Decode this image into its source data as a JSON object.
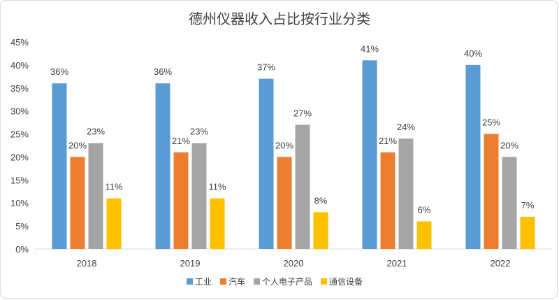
{
  "chart_data": {
    "type": "bar",
    "title": "德州仪器收入占比按行业分类",
    "categories": [
      "2018",
      "2019",
      "2020",
      "2021",
      "2022"
    ],
    "series": [
      {
        "name": "工业",
        "color": "#5B9BD5",
        "values": [
          36,
          36,
          37,
          41,
          40
        ]
      },
      {
        "name": "汽车",
        "color": "#ED7D31",
        "values": [
          20,
          21,
          20,
          21,
          25
        ]
      },
      {
        "name": "个人电子产品",
        "color": "#A5A5A5",
        "values": [
          23,
          23,
          27,
          24,
          20
        ]
      },
      {
        "name": "通信设备",
        "color": "#FFC000",
        "values": [
          11,
          11,
          8,
          6,
          7
        ]
      }
    ],
    "ylim": [
      0,
      45
    ],
    "yticks": [
      0,
      5,
      10,
      15,
      20,
      25,
      30,
      35,
      40,
      45
    ],
    "value_suffix": "%",
    "grid": false,
    "legend_position": "bottom"
  }
}
